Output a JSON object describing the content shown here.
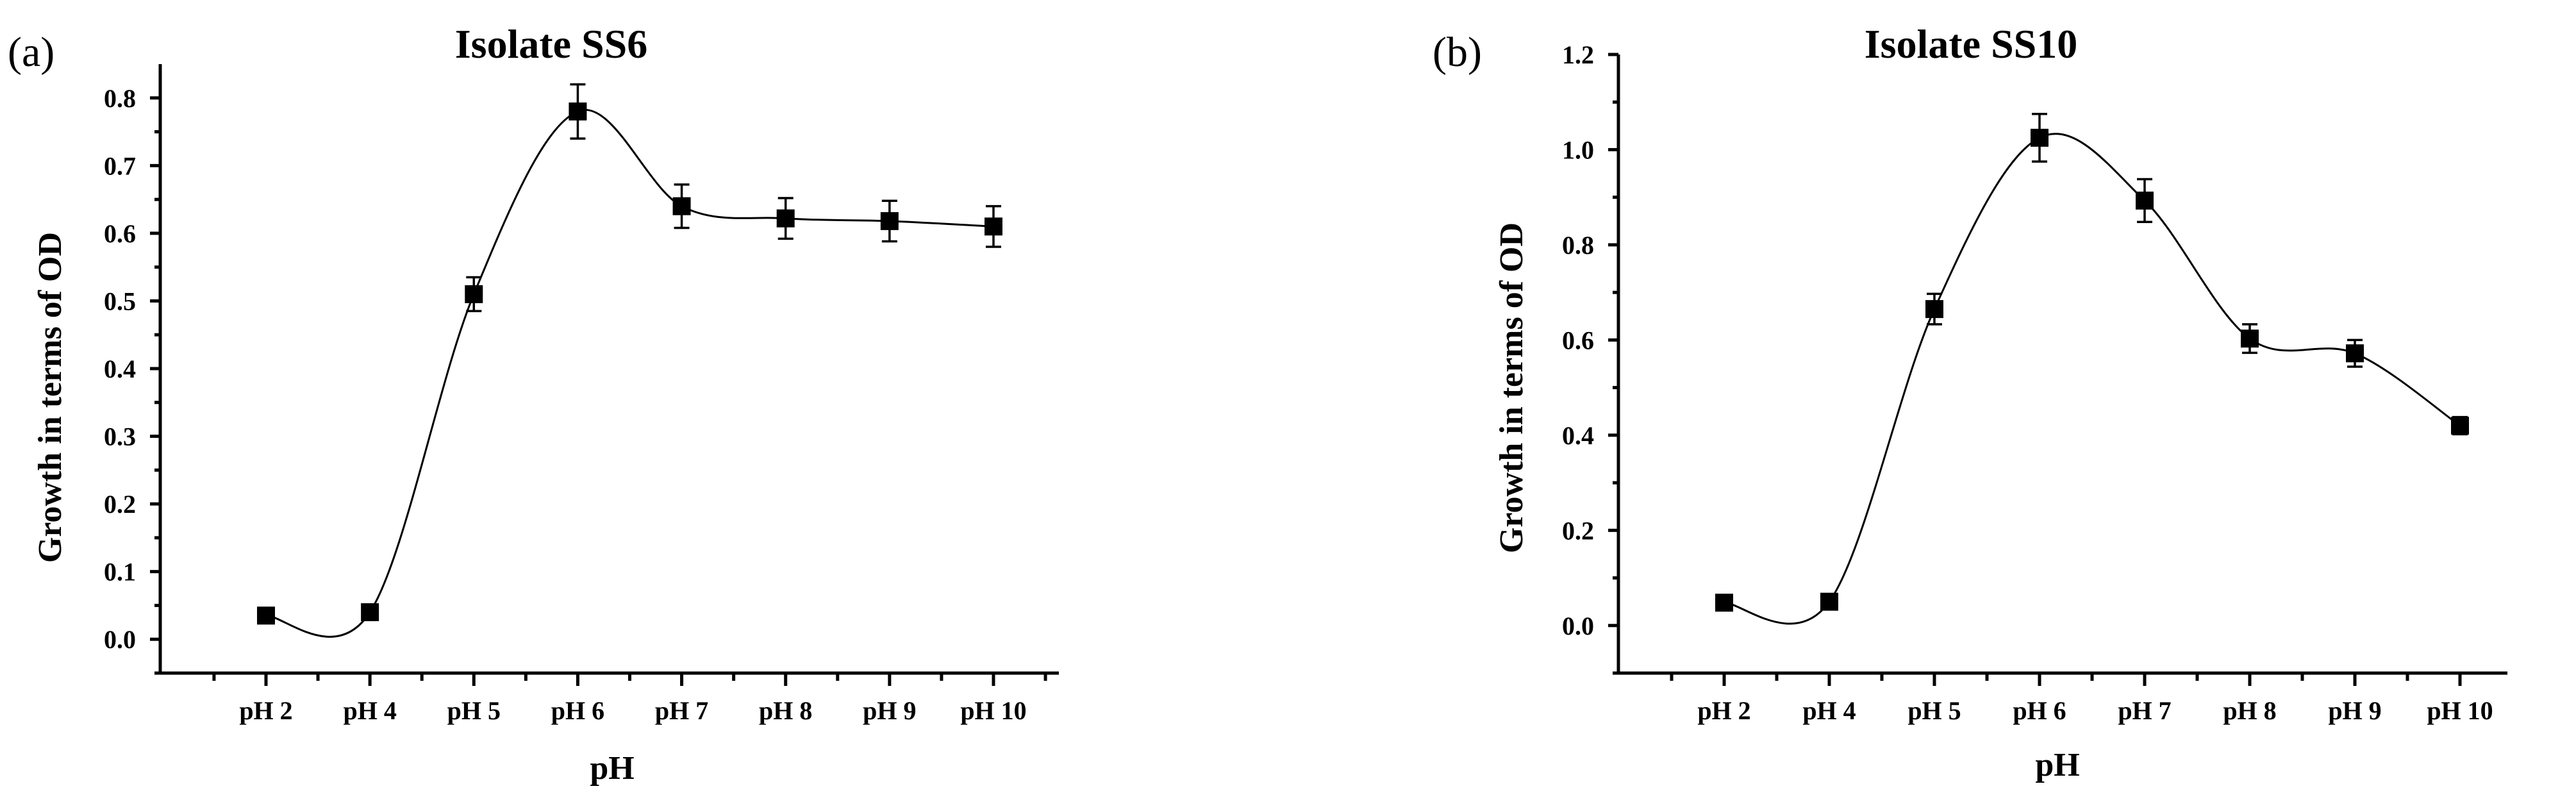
{
  "chart_data": [
    {
      "panel": "(a)",
      "type": "line",
      "title": "Isolate SS6",
      "xlabel": "pH",
      "ylabel": "Growth in terms of OD",
      "categories": [
        "pH 2",
        "pH 4",
        "pH 5",
        "pH 6",
        "pH 7",
        "pH 8",
        "pH 9",
        "pH 10"
      ],
      "values": [
        0.035,
        0.04,
        0.51,
        0.78,
        0.64,
        0.622,
        0.618,
        0.61
      ],
      "errors": [
        0.004,
        0.004,
        0.025,
        0.04,
        0.032,
        0.03,
        0.03,
        0.03
      ],
      "ylim": [
        -0.05,
        0.85
      ],
      "yticks": [
        "0.0",
        "0.1",
        "0.2",
        "0.3",
        "0.4",
        "0.5",
        "0.6",
        "0.7",
        "0.8"
      ],
      "grid": false,
      "legend": "none"
    },
    {
      "panel": "(b)",
      "type": "line",
      "title": "Isolate SS10",
      "xlabel": "pH",
      "ylabel": "Growth in terms of OD",
      "categories": [
        "pH 2",
        "pH 4",
        "pH 5",
        "pH 6",
        "pH 7",
        "pH 8",
        "pH 9",
        "pH 10"
      ],
      "values": [
        0.048,
        0.05,
        0.665,
        1.025,
        0.893,
        0.603,
        0.572,
        0.42
      ],
      "errors": [
        0.005,
        0.005,
        0.032,
        0.05,
        0.045,
        0.03,
        0.028,
        0.018
      ],
      "ylim": [
        -0.1,
        1.2
      ],
      "yticks": [
        "0.0",
        "0.2",
        "0.4",
        "0.6",
        "0.8",
        "1.0",
        "1.2"
      ],
      "grid": false,
      "legend": "none"
    }
  ]
}
